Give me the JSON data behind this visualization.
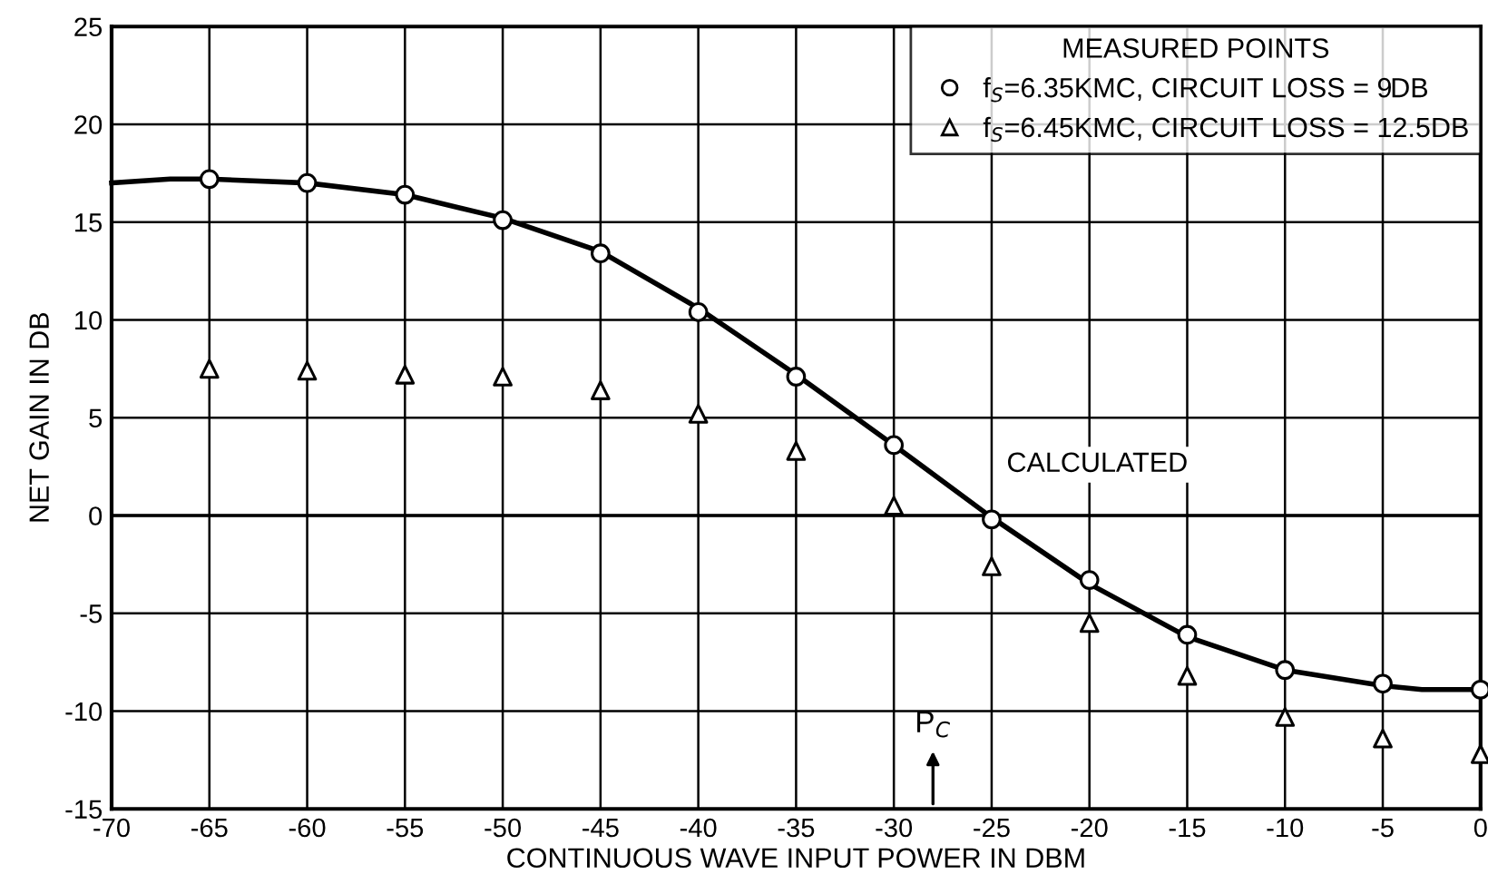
{
  "chart_data": {
    "type": "scatter",
    "xlabel": "CONTINUOUS WAVE INPUT POWER IN DBM",
    "ylabel": "NET GAIN IN DB",
    "legend_title": "MEASURED POINTS",
    "x": [
      -65,
      -60,
      -55,
      -50,
      -45,
      -40,
      -35,
      -30,
      -25,
      -20,
      -15,
      -10,
      -5,
      0
    ],
    "series": [
      {
        "name": "f$_{S}$=6.35KMC, CIRCUIT LOSS = 9DB",
        "color": "#000000",
        "marker": "circle",
        "values": [
          17.2,
          17.0,
          16.4,
          15.1,
          13.4,
          10.4,
          7.1,
          3.6,
          -0.2,
          -3.3,
          -6.1,
          -7.9,
          -8.6,
          -8.9
        ]
      },
      {
        "name": "f$_{S}$=6.45KMC, CIRCUIT LOSS = 12.5DB",
        "color": "#000000",
        "marker": "triangle",
        "values": [
          7.5,
          7.4,
          7.2,
          7.1,
          6.4,
          5.2,
          3.3,
          0.5,
          -2.6,
          -5.5,
          -8.2,
          -10.3,
          -11.4,
          -12.2
        ]
      },
      {
        "type": "line",
        "color": "#000000",
        "marker": "none",
        "line_style": "solid",
        "x": [
          -70,
          -67,
          -65,
          -60,
          -55,
          -50,
          -45,
          -40,
          -35,
          -30,
          -25,
          -20,
          -15,
          -10,
          -5,
          -3,
          0
        ],
        "values": [
          17.0,
          17.2,
          17.2,
          17.0,
          16.4,
          15.2,
          13.5,
          10.6,
          7.2,
          3.6,
          -0.1,
          -3.5,
          -6.2,
          -7.9,
          -8.7,
          -8.9,
          -8.9
        ]
      }
    ],
    "annotations": [
      "CALCULATED",
      "P$_{C}$"
    ],
    "xlim": [
      -70,
      0
    ],
    "xticks": [
      -70,
      -65,
      -60,
      -55,
      -50,
      -45,
      -40,
      -35,
      -30,
      -25,
      -20,
      -15,
      -10,
      -5,
      0
    ],
    "ylim": [
      -15,
      25
    ],
    "yticks": [
      -15,
      -10,
      -5,
      0,
      5,
      10,
      15,
      20,
      25
    ],
    "grid": true,
    "legend": "top right"
  }
}
